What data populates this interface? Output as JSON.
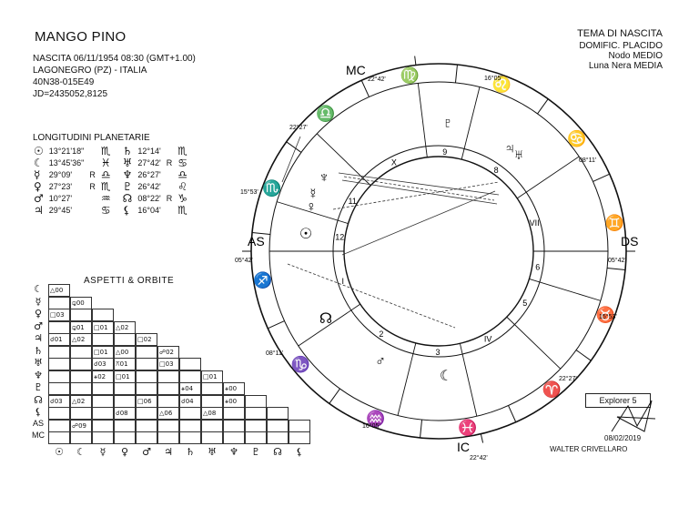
{
  "header": {
    "name": "MANGO PINO",
    "birth_line": "NASCITA 06/11/1954 08:30 (GMT+1.00)",
    "place": "LAGONEGRO (PZ) - ITALIA",
    "coords": "40N38-015E49",
    "jd": "JD=2435052,8125"
  },
  "chart_info": {
    "title": "TEMA DI NASCITA",
    "houses": "DOMIFIC. PLACIDO",
    "node": "Nodo MEDIO",
    "lilith": "Luna Nera MEDIA"
  },
  "longitudes": {
    "title": "LONGITUDINI PLANETARIE",
    "rows": [
      {
        "g1": "☉",
        "v1": "13°21'18\"",
        "r1": "",
        "s1": "♏",
        "g2": "♄",
        "v2": "12°14'",
        "r2": "",
        "s2": "♏"
      },
      {
        "g1": "☾",
        "v1": "13°45'36\"",
        "r1": "",
        "s1": "♓",
        "g2": "♅",
        "v2": "27°42'",
        "r2": "R",
        "s2": "♋"
      },
      {
        "g1": "☿",
        "v1": "29°09'",
        "r1": "R",
        "s1": "♎",
        "g2": "♆",
        "v2": "26°27'",
        "r2": "",
        "s2": "♎"
      },
      {
        "g1": "♀",
        "v1": "27°23'",
        "r1": "R",
        "s1": "♏",
        "g2": "♇",
        "v2": "26°42'",
        "r2": "",
        "s2": "♌"
      },
      {
        "g1": "♂",
        "v1": "10°27'",
        "r1": "",
        "s1": "♒",
        "g2": "☊",
        "v2": "08°22'",
        "r2": "R",
        "s2": "♑"
      },
      {
        "g1": "♃",
        "v1": "29°45'",
        "r1": "",
        "s1": "♋",
        "g2": "⚸",
        "v2": "16°04'",
        "r2": "",
        "s2": "♏"
      }
    ]
  },
  "aspects": {
    "title": "ASPETTI & ORBITE",
    "row_labels": [
      "☾",
      "☿",
      "♀",
      "♂",
      "♃",
      "♄",
      "♅",
      "♆",
      "♇",
      "☊",
      "⚸",
      "AS",
      "MC"
    ],
    "col_labels": [
      "☉",
      "☾",
      "☿",
      "♀",
      "♂",
      "♃",
      "♄",
      "♅",
      "♆",
      "♇",
      "☊",
      "⚸"
    ],
    "cells": [
      [
        {
          "t": "△00"
        }
      ],
      [
        {
          "t": ""
        },
        {
          "t": "⚼00"
        }
      ],
      [
        {
          "t": "□03"
        },
        {
          "t": ""
        },
        {
          "t": ""
        }
      ],
      [
        {
          "t": ""
        },
        {
          "t": "⚼01"
        },
        {
          "t": "□01"
        },
        {
          "t": "△02"
        }
      ],
      [
        {
          "t": "☌01"
        },
        {
          "t": "△02"
        },
        {
          "t": ""
        },
        {
          "t": ""
        },
        {
          "t": "□02"
        }
      ],
      [
        {
          "t": ""
        },
        {
          "t": ""
        },
        {
          "t": "□01"
        },
        {
          "t": "△00"
        },
        {
          "t": ""
        },
        {
          "t": "☍02"
        }
      ],
      [
        {
          "t": ""
        },
        {
          "t": ""
        },
        {
          "t": "☌03"
        },
        {
          "t": "⚻01"
        },
        {
          "t": ""
        },
        {
          "t": "□03"
        },
        {
          "t": ""
        }
      ],
      [
        {
          "t": ""
        },
        {
          "t": ""
        },
        {
          "t": "⚹02"
        },
        {
          "t": "□01"
        },
        {
          "t": ""
        },
        {
          "t": ""
        },
        {
          "t": ""
        },
        {
          "t": "□01"
        }
      ],
      [
        {
          "t": ""
        },
        {
          "t": ""
        },
        {
          "t": ""
        },
        {
          "t": ""
        },
        {
          "t": ""
        },
        {
          "t": ""
        },
        {
          "t": "⚹04"
        },
        {
          "t": ""
        },
        {
          "t": "⚹00"
        }
      ],
      [
        {
          "t": "☌03"
        },
        {
          "t": "△02"
        },
        {
          "t": ""
        },
        {
          "t": ""
        },
        {
          "t": "□06"
        },
        {
          "t": ""
        },
        {
          "t": "☌04"
        },
        {
          "t": ""
        },
        {
          "t": "⚹00"
        },
        {
          "t": ""
        }
      ],
      [
        {
          "t": ""
        },
        {
          "t": ""
        },
        {
          "t": ""
        },
        {
          "t": "☌08"
        },
        {
          "t": ""
        },
        {
          "t": "△06"
        },
        {
          "t": ""
        },
        {
          "t": "△08"
        },
        {
          "t": ""
        },
        {
          "t": ""
        },
        {
          "t": ""
        }
      ],
      [
        {
          "t": ""
        },
        {
          "t": "☍09"
        },
        {
          "t": ""
        },
        {
          "t": ""
        },
        {
          "t": ""
        },
        {
          "t": ""
        },
        {
          "t": ""
        },
        {
          "t": ""
        },
        {
          "t": ""
        },
        {
          "t": ""
        },
        {
          "t": ""
        },
        {
          "t": ""
        }
      ]
    ]
  },
  "wheel": {
    "angles": {
      "mc": "MC",
      "ic": "IC",
      "as": "AS",
      "ds": "DS"
    },
    "cusps": {
      "mc": "22°42'",
      "ic": "22°42'",
      "as": "05°42'",
      "ds": "05°42'",
      "c11": "16°05'",
      "c12": "22°27'",
      "c2": "15°53'",
      "c3": "08°11'",
      "c5": "16°05'",
      "c6": "22°27'",
      "c8": "15°53'",
      "c9": "08°11'"
    },
    "houses": [
      "I",
      "2",
      "3",
      "IV",
      "5",
      "6",
      "VII",
      "8",
      "9",
      "X",
      "11",
      "12"
    ],
    "signs": [
      "♑",
      "♐",
      "♏",
      "♎",
      "♍",
      "♌",
      "♋",
      "♊",
      "♉",
      "♈",
      "♓",
      "♒"
    ],
    "planets": [
      "☽",
      "☉",
      "♄",
      "♀",
      "☿",
      "♆",
      "♇",
      "♃",
      "♅",
      "☊",
      "♂",
      "☾"
    ]
  },
  "footer": {
    "software": "Explorer 5",
    "date": "08/02/2019",
    "author": "WALTER CRIVELLARO"
  }
}
